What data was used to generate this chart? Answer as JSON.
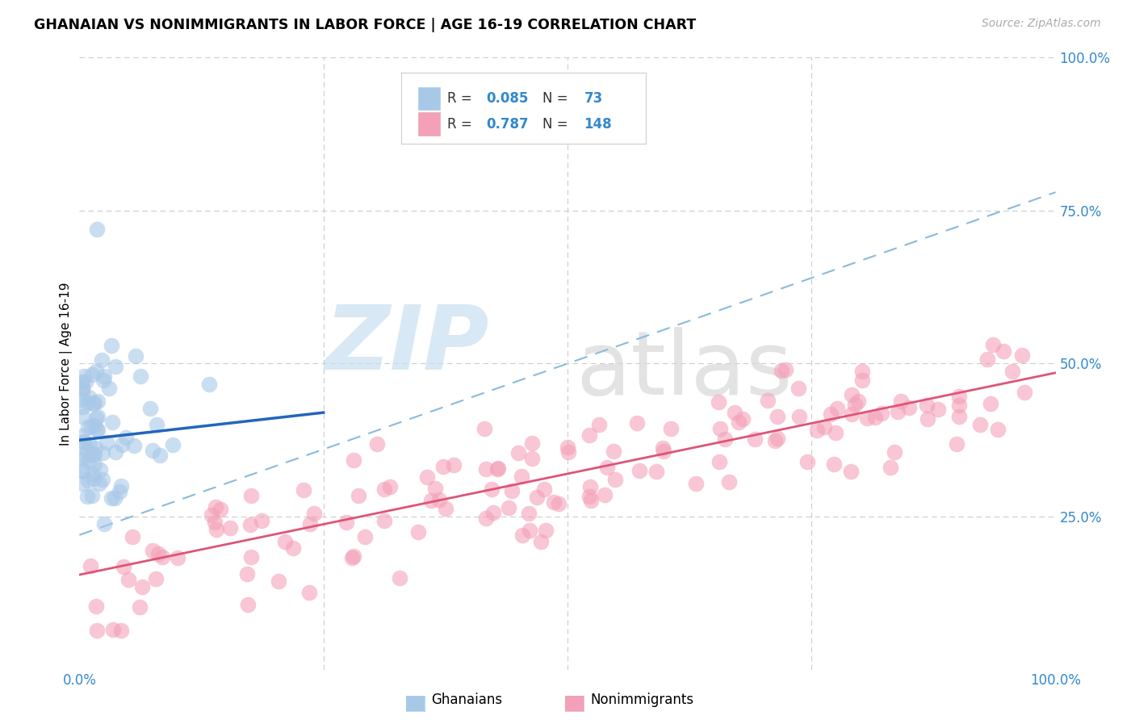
{
  "title": "GHANAIAN VS NONIMMIGRANTS IN LABOR FORCE | AGE 16-19 CORRELATION CHART",
  "source_text": "Source: ZipAtlas.com",
  "ylabel": "In Labor Force | Age 16-19",
  "xlim": [
    0.0,
    1.0
  ],
  "ylim": [
    0.0,
    1.0
  ],
  "ytick_positions": [
    0.25,
    0.5,
    0.75,
    1.0
  ],
  "ytick_labels": [
    "25.0%",
    "50.0%",
    "75.0%",
    "100.0%"
  ],
  "xtick_positions": [
    0.0,
    1.0
  ],
  "xtick_labels": [
    "0.0%",
    "100.0%"
  ],
  "color_ghanaian": "#a8c8e8",
  "color_nonimmigrant": "#f4a0b8",
  "color_blue_text": "#3388cc",
  "color_line_blue": "#2266bb",
  "color_line_pink": "#dd5577",
  "color_line_dashed": "#88bbdd",
  "background_color": "#ffffff",
  "grid_color": "#cccccc",
  "watermark_zip_color": "#c8dff0",
  "watermark_atlas_color": "#d8d8d8",
  "legend_r1": "0.085",
  "legend_n1": "73",
  "legend_r2": "0.787",
  "legend_n2": "148",
  "ghanaian_seed": 12,
  "nonimmigrant_seed": 7,
  "blue_line_x0": 0.0,
  "blue_line_y0": 0.375,
  "blue_line_x1": 0.25,
  "blue_line_y1": 0.42,
  "pink_line_x0": 0.0,
  "pink_line_y0": 0.155,
  "pink_line_x1": 1.0,
  "pink_line_y1": 0.485,
  "dash_line_x0": 0.0,
  "dash_line_y0": 0.22,
  "dash_line_x1": 1.0,
  "dash_line_y1": 0.78
}
